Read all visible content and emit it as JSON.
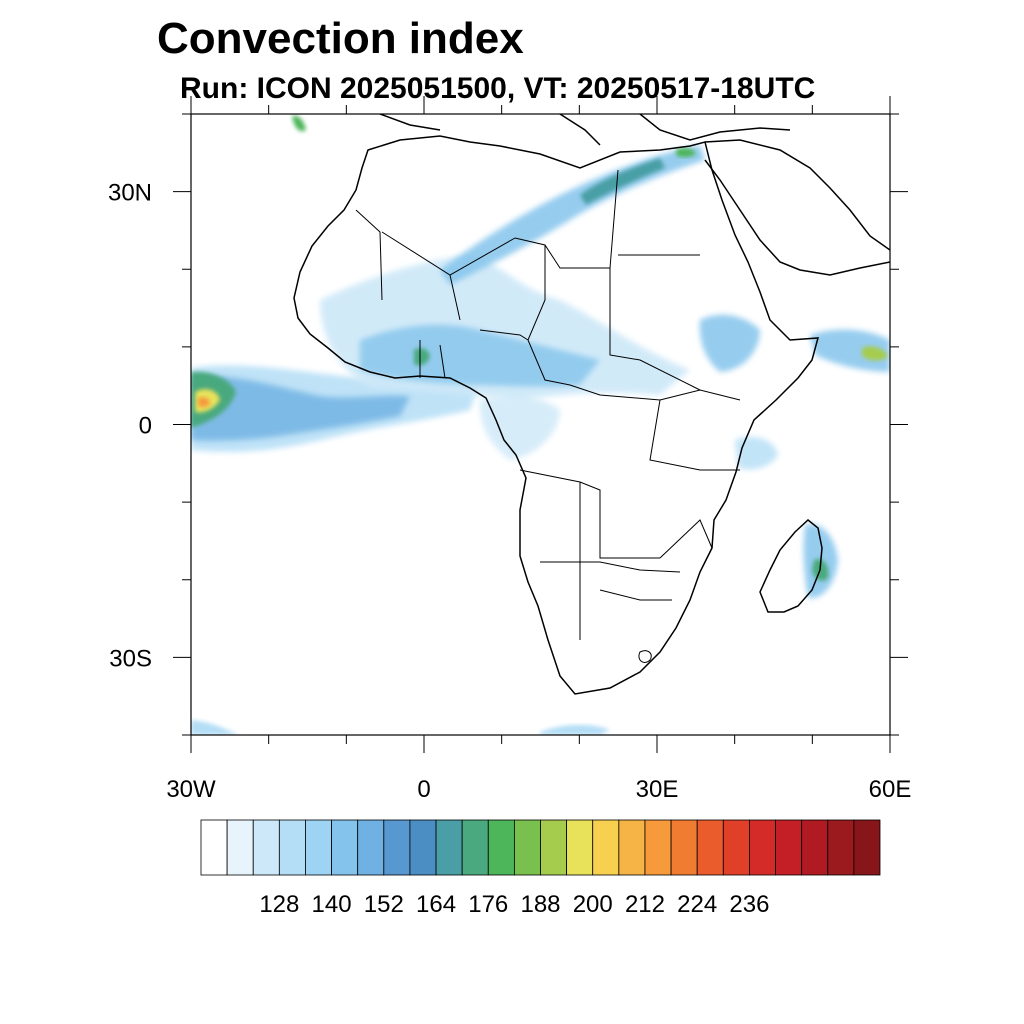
{
  "title": "Convection index",
  "subtitle": "Run: ICON 2025051500,  VT: 20250517-18UTC",
  "map": {
    "lon_range": [
      -30,
      60
    ],
    "lat_range": [
      -40,
      40
    ],
    "x_ticks": [
      {
        "lon": -30,
        "label": "30W"
      },
      {
        "lon": 0,
        "label": "0"
      },
      {
        "lon": 30,
        "label": "30E"
      },
      {
        "lon": 60,
        "label": "60E"
      }
    ],
    "y_ticks": [
      {
        "lat": 30,
        "label": "30N"
      },
      {
        "lat": 0,
        "label": "0"
      },
      {
        "lat": -30,
        "label": "30S"
      }
    ],
    "coast_color": "#000000"
  },
  "colorbar": {
    "colors": [
      "#ffffff",
      "#e8f4fc",
      "#cde8f8",
      "#b4def6",
      "#9dd4f4",
      "#84c4ec",
      "#6eb1e2",
      "#5898d0",
      "#4a8ec4",
      "#4a9fa6",
      "#4aa97e",
      "#4db55a",
      "#7ac04e",
      "#a6cc4e",
      "#e8e25a",
      "#f8d050",
      "#f6b446",
      "#f69a3c",
      "#f07c32",
      "#ea5c2c",
      "#e04028",
      "#d42a28",
      "#c41e26",
      "#b01a22",
      "#9a1a1e",
      "#86161a"
    ],
    "labels": [
      "128",
      "140",
      "152",
      "164",
      "176",
      "188",
      "200",
      "212",
      "224",
      "236"
    ]
  }
}
